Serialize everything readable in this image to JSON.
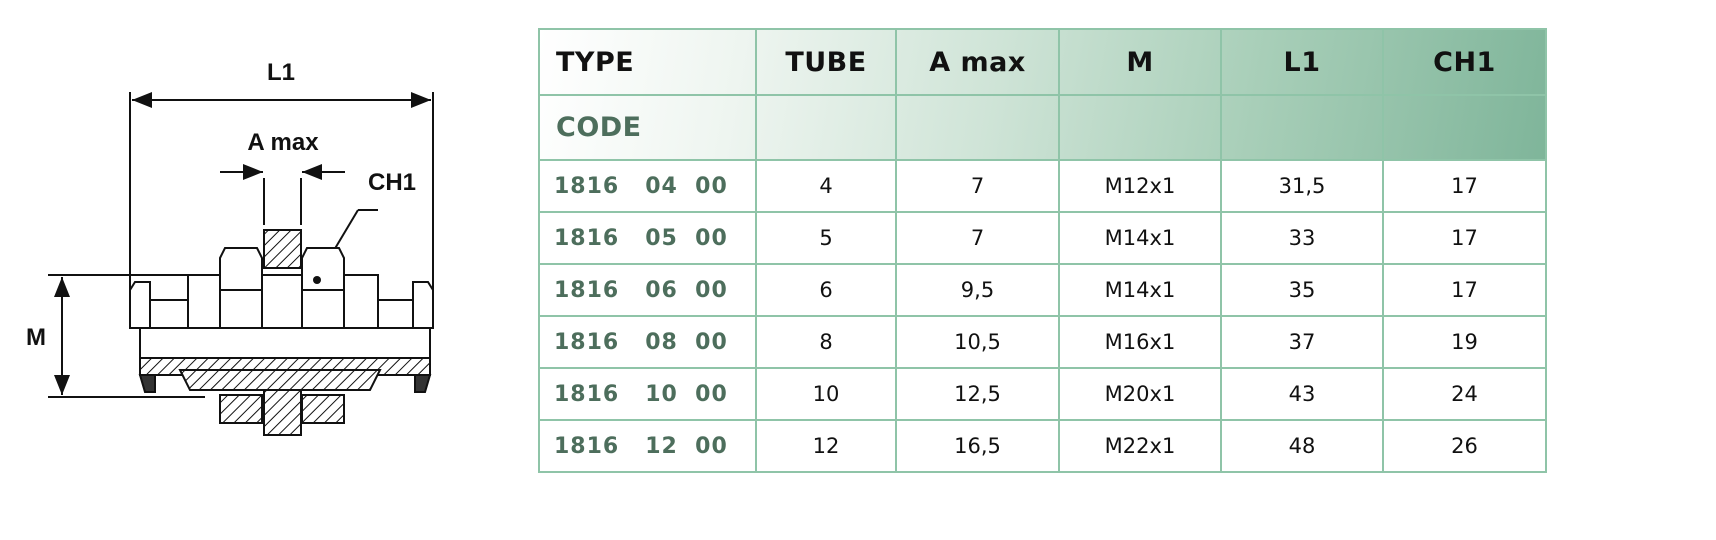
{
  "drawing": {
    "labels": {
      "l1": "L1",
      "amax": "A max",
      "ch1": "CH1",
      "m": "M"
    }
  },
  "table": {
    "headers": {
      "type": "TYPE",
      "code": "CODE",
      "tube": "TUBE",
      "amax": "A max",
      "m": "M",
      "l1": "L1",
      "ch1": "CH1"
    },
    "rows": [
      {
        "code": "1816   04  00",
        "tube": "4",
        "amax": "7",
        "m": "M12x1",
        "l1": "31,5",
        "ch1": "17"
      },
      {
        "code": "1816   05  00",
        "tube": "5",
        "amax": "7",
        "m": "M14x1",
        "l1": "33",
        "ch1": "17"
      },
      {
        "code": "1816   06  00",
        "tube": "6",
        "amax": "9,5",
        "m": "M14x1",
        "l1": "35",
        "ch1": "17"
      },
      {
        "code": "1816   08  00",
        "tube": "8",
        "amax": "10,5",
        "m": "M16x1",
        "l1": "37",
        "ch1": "19"
      },
      {
        "code": "1816   10  00",
        "tube": "10",
        "amax": "12,5",
        "m": "M20x1",
        "l1": "43",
        "ch1": "24"
      },
      {
        "code": "1816   12  00",
        "tube": "12",
        "amax": "16,5",
        "m": "M22x1",
        "l1": "48",
        "ch1": "26"
      }
    ],
    "colors": {
      "border": "#8fc4a8",
      "code_text": "#4d6e5c",
      "header_gradient_end": "#7fb59a"
    }
  }
}
